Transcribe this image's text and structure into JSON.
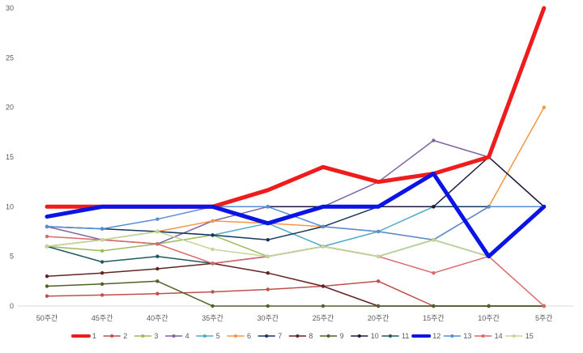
{
  "chart_data": {
    "type": "line",
    "title": "",
    "xlabel": "",
    "ylabel": "",
    "ylim": [
      0,
      30
    ],
    "yticks": [
      0,
      5,
      10,
      15,
      20,
      25,
      30
    ],
    "grid": false,
    "legend": "bottom",
    "categories": [
      "50주간",
      "45주간",
      "40주간",
      "35주간",
      "30주간",
      "25주간",
      "20주간",
      "15주간",
      "10주간",
      "5주간"
    ],
    "series": [
      {
        "name": "1",
        "color": "#ee1c1c",
        "width": 5,
        "values": [
          10,
          10,
          10,
          10,
          11.67,
          14,
          12.5,
          13.33,
          15,
          30
        ]
      },
      {
        "name": "2",
        "color": "#c0504d",
        "width": 1.5,
        "values": [
          1,
          1.11,
          1.25,
          1.43,
          1.67,
          2,
          2.5,
          0,
          0,
          0
        ]
      },
      {
        "name": "3",
        "color": "#9bbb59",
        "width": 1.5,
        "values": [
          6,
          5.56,
          6.25,
          7.14,
          5,
          6,
          5,
          6.67,
          5,
          10
        ]
      },
      {
        "name": "4",
        "color": "#8064a2",
        "width": 1.5,
        "values": [
          8,
          6.67,
          6.25,
          8.57,
          10,
          10,
          12.5,
          16.67,
          15,
          10
        ]
      },
      {
        "name": "5",
        "color": "#4bacc6",
        "width": 1.5,
        "values": [
          6,
          6.67,
          7.5,
          7.14,
          8.33,
          6,
          7.5,
          10,
          10,
          10
        ]
      },
      {
        "name": "6",
        "color": "#f79646",
        "width": 1.5,
        "values": [
          6,
          6.67,
          7.5,
          8.57,
          8.33,
          8,
          7.5,
          6.67,
          10,
          20
        ]
      },
      {
        "name": "7",
        "color": "#17375e",
        "width": 1.5,
        "values": [
          8,
          7.78,
          7.5,
          7.14,
          6.67,
          8,
          10,
          10,
          10,
          10
        ]
      },
      {
        "name": "8",
        "color": "#632523",
        "width": 1.5,
        "values": [
          3,
          3.33,
          3.75,
          4.29,
          3.33,
          2,
          0,
          0,
          0,
          0
        ]
      },
      {
        "name": "9",
        "color": "#4f6228",
        "width": 1.5,
        "values": [
          2,
          2.22,
          2.5,
          0,
          0,
          0,
          0,
          0,
          0,
          0
        ]
      },
      {
        "name": "10",
        "color": "#1f1a3d",
        "width": 1.5,
        "values": [
          9,
          10,
          10,
          10,
          10,
          10,
          10,
          10,
          15,
          10
        ]
      },
      {
        "name": "11",
        "color": "#215a5e",
        "width": 1.5,
        "values": [
          6,
          4.44,
          5,
          4.29,
          5,
          6,
          5,
          6.67,
          5,
          10
        ]
      },
      {
        "name": "12",
        "color": "#0a14e6",
        "width": 5,
        "values": [
          9,
          10,
          10,
          10,
          8.33,
          10,
          10,
          13.33,
          5,
          10
        ]
      },
      {
        "name": "13",
        "color": "#558ed5",
        "width": 1.5,
        "values": [
          8,
          7.78,
          8.75,
          10,
          10,
          8,
          7.5,
          6.67,
          10,
          10
        ]
      },
      {
        "name": "14",
        "color": "#d9696a",
        "width": 1.5,
        "values": [
          7,
          6.67,
          6.25,
          4.29,
          5,
          6,
          5,
          3.33,
          5,
          0
        ]
      },
      {
        "name": "15",
        "color": "#c3d69b",
        "width": 1.5,
        "values": [
          6,
          6.67,
          7.5,
          5.71,
          5,
          6,
          5,
          6.67,
          5,
          10
        ]
      }
    ]
  }
}
